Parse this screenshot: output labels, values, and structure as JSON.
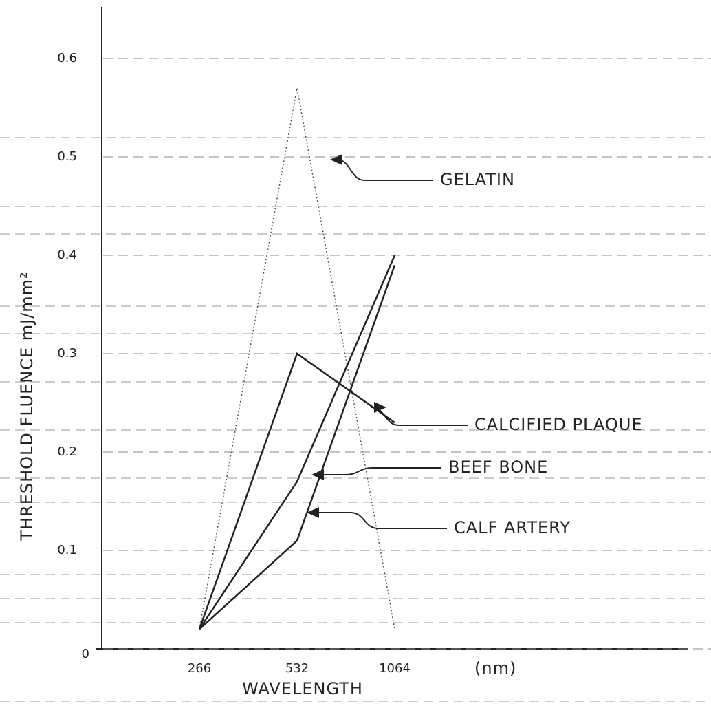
{
  "chart_data": {
    "type": "line",
    "y_label": "THRESHOLD FLUENCE mJ/mm²",
    "x_label": "WAVELENGTH",
    "x_unit_label": "(nm)",
    "categories": [
      "266",
      "532",
      "1064"
    ],
    "series": [
      {
        "name": "GELATIN",
        "color": "#555555",
        "values": [
          0.02,
          0.57,
          0.02
        ]
      },
      {
        "name": "CALCIFIED PLAQUE",
        "color": "#222222",
        "values": [
          0.02,
          0.3,
          0.23
        ]
      },
      {
        "name": "BEEF BONE",
        "color": "#222222",
        "values": [
          0.02,
          0.17,
          0.4
        ]
      },
      {
        "name": "CALF ARTERY",
        "color": "#222222",
        "values": [
          0.02,
          0.11,
          0.39
        ]
      }
    ],
    "ylim": [
      0,
      0.65
    ],
    "yticks": [
      0,
      0.1,
      0.2,
      0.3,
      0.4,
      0.5,
      0.6
    ],
    "grid": true
  }
}
